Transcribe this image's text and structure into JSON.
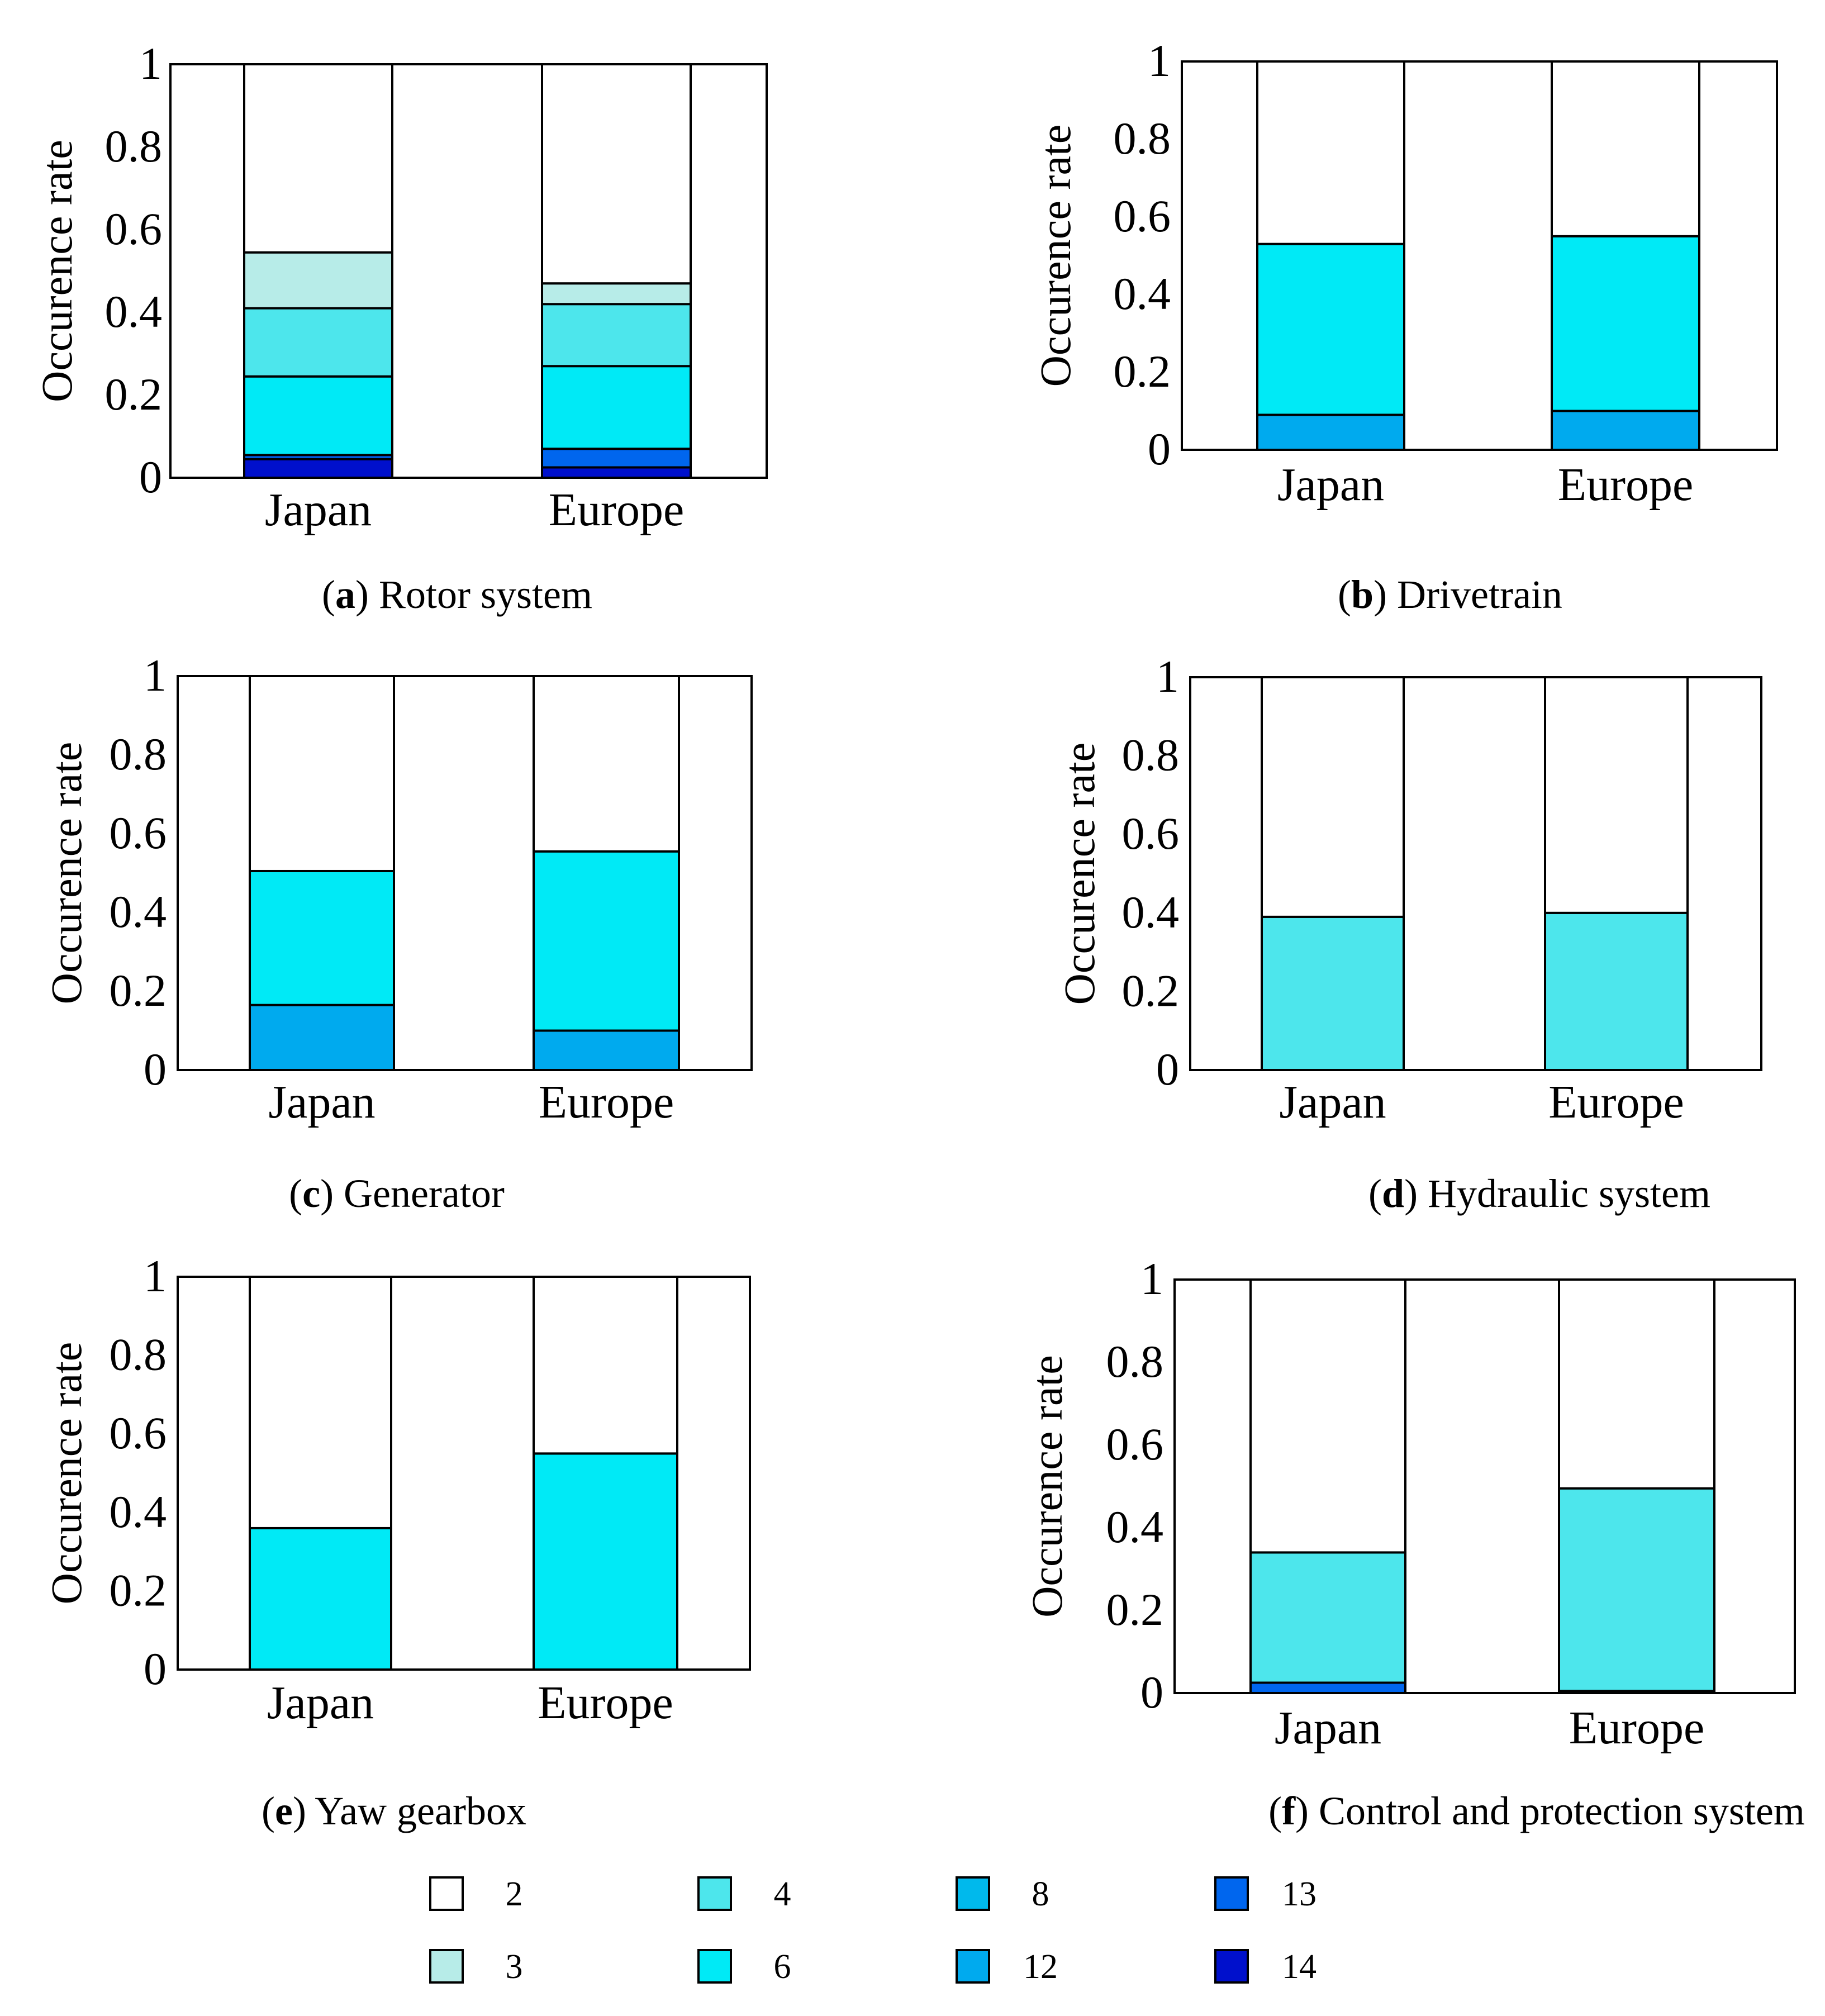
{
  "figure": {
    "colors": {
      "2": "#ffffff",
      "3": "#b7ece8",
      "4": "#4de6ec",
      "6": "#00eaf6",
      "8": "#00b9ec",
      "12": "#00aaee",
      "13": "#0066ee",
      "14": "#0010cc"
    },
    "legend": [
      {
        "code": "2",
        "label": "2"
      },
      {
        "code": "4",
        "label": "4"
      },
      {
        "code": "8",
        "label": "8"
      },
      {
        "code": "13",
        "label": "13"
      },
      {
        "code": "3",
        "label": "3"
      },
      {
        "code": "6",
        "label": "6"
      },
      {
        "code": "12",
        "label": "12"
      },
      {
        "code": "14",
        "label": "14"
      }
    ]
  },
  "chart_data": [
    {
      "type": "bar",
      "stacked": true,
      "caption_letter": "a",
      "caption_text": "Rotor system",
      "title": "(a) Rotor system",
      "ylabel": "Occurence rate",
      "xlabel": "",
      "ylim": [
        0,
        1
      ],
      "yticks": [
        "0",
        "0.2",
        "0.4",
        "0.6",
        "0.8",
        "1"
      ],
      "categories": [
        "Japan",
        "Europe"
      ],
      "series": [
        {
          "name": "14",
          "values": [
            0.045,
            0.025
          ]
        },
        {
          "name": "13",
          "values": [
            0.01,
            0.045
          ]
        },
        {
          "name": "6",
          "values": [
            0.19,
            0.2
          ]
        },
        {
          "name": "4",
          "values": [
            0.165,
            0.15
          ]
        },
        {
          "name": "3",
          "values": [
            0.135,
            0.05
          ]
        },
        {
          "name": "2",
          "values": [
            0.455,
            0.53
          ]
        }
      ]
    },
    {
      "type": "bar",
      "stacked": true,
      "caption_letter": "b",
      "caption_text": "Drivetrain",
      "title": "(b) Drivetrain",
      "ylabel": "Occurence rate",
      "xlabel": "",
      "ylim": [
        0,
        1
      ],
      "yticks": [
        "0",
        "0.2",
        "0.4",
        "0.6",
        "0.8",
        "1"
      ],
      "categories": [
        "Japan",
        "Europe"
      ],
      "series": [
        {
          "name": "12",
          "values": [
            0.09,
            0.1
          ]
        },
        {
          "name": "6",
          "values": [
            0.44,
            0.45
          ]
        },
        {
          "name": "2",
          "values": [
            0.47,
            0.45
          ]
        }
      ]
    },
    {
      "type": "bar",
      "stacked": true,
      "caption_letter": "c",
      "caption_text": "Generator",
      "title": "(c) Generator",
      "ylabel": "Occurence rate",
      "xlabel": "",
      "ylim": [
        0,
        1
      ],
      "yticks": [
        "0",
        "0.2",
        "0.4",
        "0.6",
        "0.8",
        "1"
      ],
      "categories": [
        "Japan",
        "Europe"
      ],
      "series": [
        {
          "name": "12",
          "values": [
            0.165,
            0.1
          ]
        },
        {
          "name": "6",
          "values": [
            0.34,
            0.455
          ]
        },
        {
          "name": "2",
          "values": [
            0.495,
            0.445
          ]
        }
      ]
    },
    {
      "type": "bar",
      "stacked": true,
      "caption_letter": "d",
      "caption_text": "Hydraulic system",
      "title": "(d) Hydraulic system",
      "ylabel": "Occurence rate",
      "xlabel": "",
      "ylim": [
        0,
        1
      ],
      "yticks": [
        "0",
        "0.2",
        "0.4",
        "0.6",
        "0.8",
        "1"
      ],
      "categories": [
        "Japan",
        "Europe"
      ],
      "series": [
        {
          "name": "4",
          "values": [
            0.39,
            0.4
          ]
        },
        {
          "name": "2",
          "values": [
            0.61,
            0.6
          ]
        }
      ]
    },
    {
      "type": "bar",
      "stacked": true,
      "caption_letter": "e",
      "caption_text": "Yaw gearbox",
      "title": "(e) Yaw gearbox",
      "ylabel": "Occurence rate",
      "xlabel": "",
      "ylim": [
        0,
        1
      ],
      "yticks": [
        "0",
        "0.2",
        "0.4",
        "0.6",
        "0.8",
        "1"
      ],
      "categories": [
        "Japan",
        "Europe"
      ],
      "series": [
        {
          "name": "6",
          "values": [
            0.36,
            0.55
          ]
        },
        {
          "name": "2",
          "values": [
            0.64,
            0.45
          ]
        }
      ]
    },
    {
      "type": "bar",
      "stacked": true,
      "caption_letter": "f",
      "caption_text": "Control and protection system",
      "title": "(f) Control and protection system",
      "ylabel": "Occurence rate",
      "xlabel": "",
      "ylim": [
        0,
        1
      ],
      "yticks": [
        "0",
        "0.2",
        "0.4",
        "0.6",
        "0.8",
        "1"
      ],
      "categories": [
        "Japan",
        "Europe"
      ],
      "series": [
        {
          "name": "13",
          "values": [
            0.025,
            0.005
          ]
        },
        {
          "name": "4",
          "values": [
            0.315,
            0.49
          ]
        },
        {
          "name": "2",
          "values": [
            0.66,
            0.505
          ]
        }
      ]
    }
  ]
}
